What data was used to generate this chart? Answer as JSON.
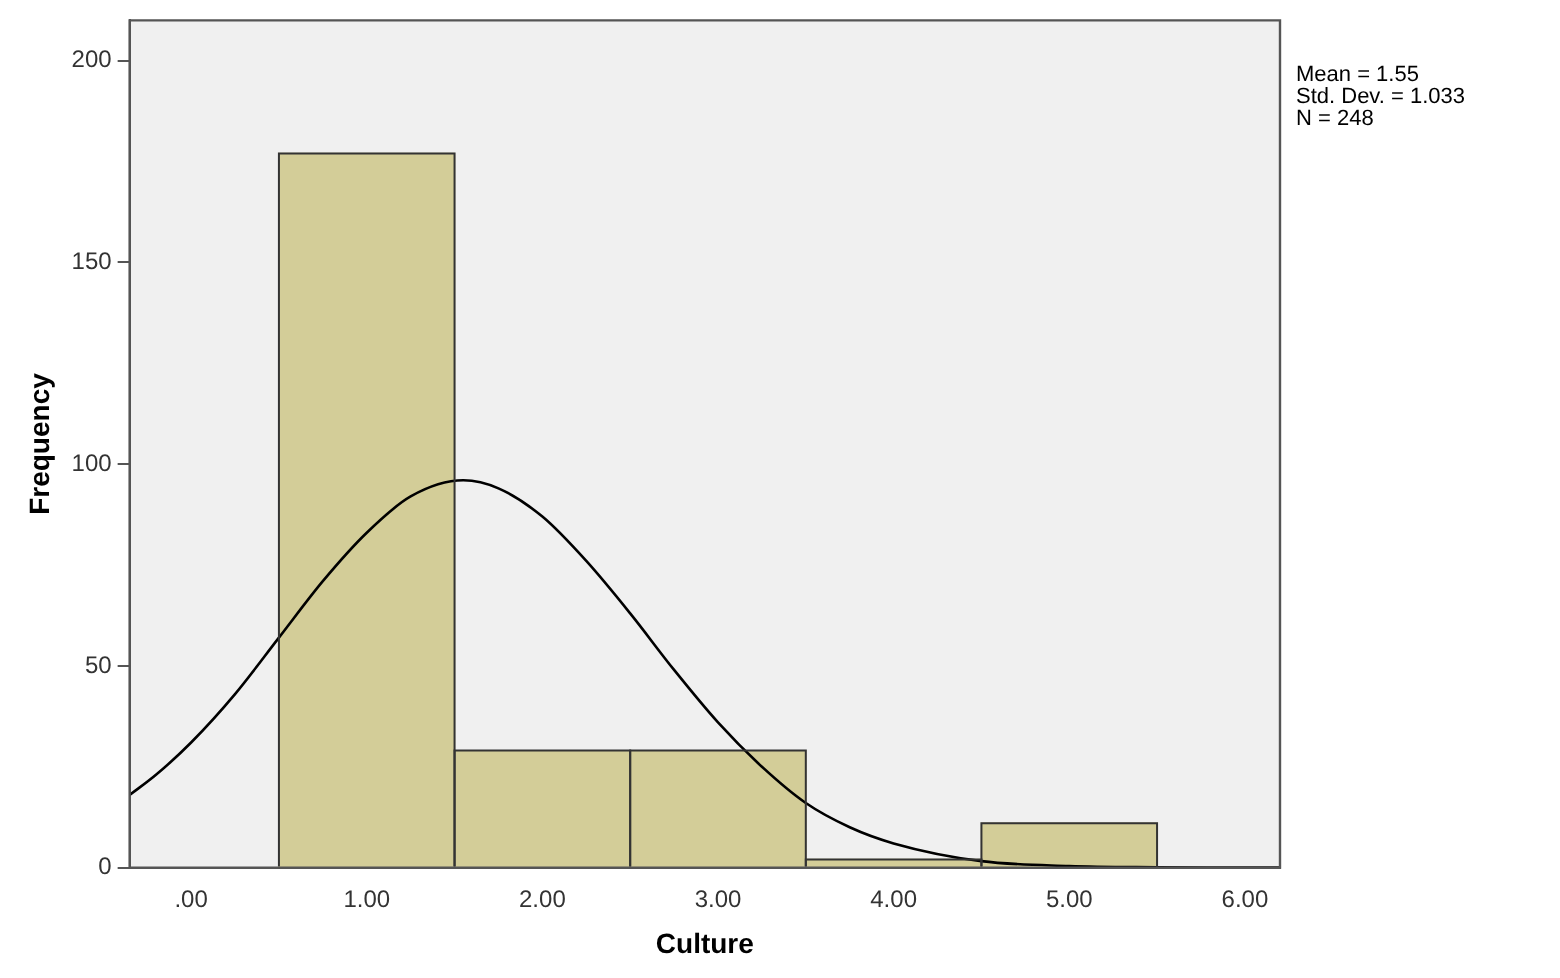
{
  "chart_data": {
    "type": "histogram",
    "xlabel": "Culture",
    "ylabel": "Frequency",
    "bins": [
      0.5,
      1.5,
      2.5,
      3.5,
      4.5,
      5.5
    ],
    "values": [
      177,
      29,
      29,
      2,
      11
    ],
    "color": "#d3cd98",
    "series": [
      {
        "type": "line",
        "color": "#000000",
        "x": [
          -0.35,
          -0.2,
          0,
          0.25,
          0.5,
          0.75,
          1,
          1.25,
          1.55,
          1.75,
          2,
          2.25,
          2.5,
          2.75,
          3,
          3.25,
          3.5,
          3.75,
          4,
          4.5,
          5,
          5.5,
          6,
          6.2
        ],
        "values": [
          18,
          23,
          31,
          43,
          57,
          71,
          83,
          92,
          96,
          94,
          87,
          76,
          63,
          49,
          36,
          25,
          16,
          10,
          6,
          1.6,
          0.4,
          0.1,
          0,
          0
        ]
      }
    ],
    "marker": "none",
    "line_style": "solid",
    "xlim": [
      -0.35,
      6.2
    ],
    "xticks": [
      {
        "value": 0,
        "label": ".00"
      },
      {
        "value": 1,
        "label": "1.00"
      },
      {
        "value": 2,
        "label": "2.00"
      },
      {
        "value": 3,
        "label": "3.00"
      },
      {
        "value": 4,
        "label": "4.00"
      },
      {
        "value": 5,
        "label": "5.00"
      },
      {
        "value": 6,
        "label": "6.00"
      }
    ],
    "ylim": [
      0,
      210
    ],
    "yticks": [
      0,
      50,
      100,
      150,
      200
    ],
    "annotations": [
      "Mean = 1.55",
      "Std. Dev. = 1.033",
      "N = 248"
    ],
    "grid": false,
    "legend": false
  }
}
